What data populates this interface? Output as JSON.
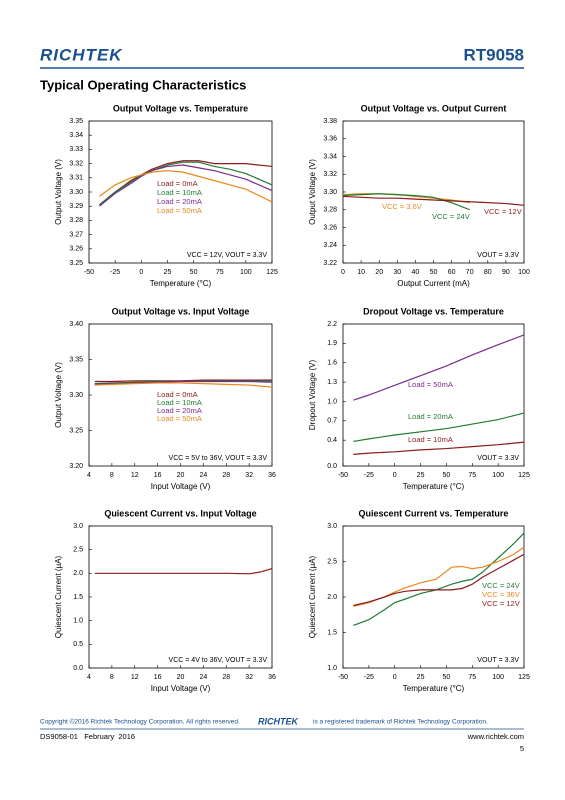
{
  "header": {
    "logo": "RICHTEK",
    "part": "RT9058",
    "section": "Typical Operating Characteristics"
  },
  "footer": {
    "copyright": "Copyright ©2016 Richtek Technology Corporation. All rights reserved.",
    "logo": "RICHTEK",
    "trademark": "is a registered trademark of Richtek Technology Corporation.",
    "doc": "DS9058-01   February  2016",
    "web": "www.richtek.com",
    "page": "5"
  },
  "chart_data": [
    {
      "type": "line",
      "title": "Output Voltage vs. Temperature",
      "xlabel": "Temperature (°C)",
      "ylabel": "Output Voltage (V)",
      "xlim": [
        -50,
        125
      ],
      "xticks": [
        -50,
        -25,
        0,
        25,
        50,
        75,
        100,
        125
      ],
      "ylim": [
        3.25,
        3.35
      ],
      "yticks": [
        3.25,
        3.26,
        3.27,
        3.28,
        3.29,
        {
          "value": 3.3,
          "label": "3.30"
        },
        3.31,
        3.32,
        3.33,
        3.34,
        3.35
      ],
      "x": [
        -40,
        -25,
        -10,
        0,
        10,
        25,
        40,
        55,
        70,
        85,
        100,
        125
      ],
      "series": [
        {
          "name": "Load = 0mA",
          "color": "#8b1a1a",
          "values": [
            3.291,
            3.3,
            3.308,
            3.312,
            3.316,
            3.32,
            3.322,
            3.322,
            3.32,
            3.32,
            3.32,
            3.318
          ]
        },
        {
          "name": "Load = 10mA",
          "color": "#1e7b30",
          "values": [
            3.291,
            3.3,
            3.307,
            3.312,
            3.315,
            3.319,
            3.321,
            3.321,
            3.318,
            3.316,
            3.313,
            3.305
          ]
        },
        {
          "name": "Load = 20mA",
          "color": "#7b2a8c",
          "values": [
            3.29,
            3.299,
            3.306,
            3.311,
            3.315,
            3.318,
            3.319,
            3.317,
            3.315,
            3.312,
            3.309,
            3.301
          ]
        },
        {
          "name": "Load = 50mA",
          "color": "#e8861a",
          "values": [
            3.297,
            3.305,
            3.31,
            3.312,
            3.314,
            3.315,
            3.314,
            3.311,
            3.308,
            3.305,
            3.302,
            3.293
          ]
        }
      ],
      "annotation": "VCC = 12V, VOUT = 3.3V"
    },
    {
      "type": "line",
      "title": "Output Voltage vs. Output Current",
      "xlabel": "Output Current (mA)",
      "ylabel": "Output Voltage (V)",
      "xlim": [
        0,
        100
      ],
      "xticks": [
        0,
        10,
        20,
        30,
        40,
        50,
        60,
        70,
        80,
        90,
        100
      ],
      "ylim": [
        3.22,
        3.38
      ],
      "yticks": [
        3.22,
        3.24,
        3.26,
        3.28,
        {
          "value": 3.3,
          "label": "3.30"
        },
        3.32,
        3.34,
        3.36,
        3.38
      ],
      "x": [
        0,
        10,
        20,
        30,
        40,
        50,
        60,
        70,
        80,
        90,
        100
      ],
      "series": [
        {
          "name": "VCC = 3.6V",
          "color": "#e8861a",
          "values": [
            3.297,
            3.298,
            3.298,
            3.297,
            3.295,
            3.293,
            3.291,
            3.288,
            null,
            null,
            null
          ]
        },
        {
          "name": "VCC = 24V",
          "color": "#1e7b30",
          "values": [
            3.296,
            3.297,
            3.298,
            3.297,
            3.296,
            3.294,
            3.288,
            3.28,
            null,
            null,
            null
          ]
        },
        {
          "name": "VCC = 12V",
          "color": "#8b1a1a",
          "values": [
            3.295,
            3.294,
            3.293,
            3.293,
            3.292,
            3.291,
            3.29,
            3.289,
            3.288,
            3.287,
            3.285
          ]
        }
      ],
      "annotation": "VOUT = 3.3V"
    },
    {
      "type": "line",
      "title": "Output Voltage vs. Input Voltage",
      "xlabel": "Input Voltage (V)",
      "ylabel": "Output Voltage (V)",
      "xlim": [
        4,
        36
      ],
      "xticks": [
        4,
        8,
        12,
        16,
        20,
        24,
        28,
        32,
        36
      ],
      "ylim": [
        3.2,
        3.4
      ],
      "yticks": [
        {
          "value": 3.2,
          "label": "3.20"
        },
        3.25,
        {
          "value": 3.3,
          "label": "3.30"
        },
        3.35,
        {
          "value": 3.4,
          "label": "3.40"
        }
      ],
      "x": [
        5,
        8,
        12,
        16,
        20,
        24,
        28,
        32,
        36
      ],
      "series": [
        {
          "name": "Load = 0mA",
          "color": "#8b1a1a",
          "values": [
            3.319,
            3.319,
            3.32,
            3.32,
            3.32,
            3.321,
            3.321,
            3.321,
            3.321
          ]
        },
        {
          "name": "Load = 10mA",
          "color": "#1e7b30",
          "values": [
            3.316,
            3.317,
            3.318,
            3.319,
            3.319,
            3.32,
            3.32,
            3.32,
            3.32
          ]
        },
        {
          "name": "Load = 20mA",
          "color": "#7b2a8c",
          "values": [
            3.315,
            3.316,
            3.317,
            3.318,
            3.319,
            3.319,
            3.319,
            3.319,
            3.318
          ]
        },
        {
          "name": "Load = 50mA",
          "color": "#e8861a",
          "values": [
            3.314,
            3.315,
            3.316,
            3.317,
            3.317,
            3.316,
            3.315,
            3.314,
            3.311
          ]
        }
      ],
      "annotation": "VCC = 5V to 36V, VOUT = 3.3V"
    },
    {
      "type": "line",
      "title": "Dropout Voltage vs. Temperature",
      "xlabel": "Temperature (°C)",
      "ylabel": "Dropout Voltage (V)",
      "xlim": [
        -50,
        125
      ],
      "xticks": [
        -50,
        -25,
        0,
        25,
        50,
        75,
        100,
        125
      ],
      "ylim": [
        0,
        2.2
      ],
      "yticks": [
        {
          "value": 0,
          "label": "0.0"
        },
        0.4,
        0.7,
        {
          "value": 1,
          "label": "1.0"
        },
        1.3,
        1.6,
        1.9,
        2.2
      ],
      "x": [
        -40,
        -25,
        0,
        25,
        50,
        75,
        100,
        125
      ],
      "series": [
        {
          "name": "Load = 50mA",
          "color": "#7b2a8c",
          "values": [
            1.02,
            1.1,
            1.25,
            1.4,
            1.55,
            1.72,
            1.88,
            2.03
          ]
        },
        {
          "name": "Load = 20mA",
          "color": "#1e7b30",
          "values": [
            0.38,
            0.42,
            0.48,
            0.53,
            0.58,
            0.65,
            0.72,
            0.82
          ]
        },
        {
          "name": "Load = 10mA",
          "color": "#8b1a1a",
          "values": [
            0.18,
            0.2,
            0.22,
            0.25,
            0.27,
            0.3,
            0.33,
            0.37
          ]
        }
      ],
      "annotation": "VOUT = 3.3V"
    },
    {
      "type": "line",
      "title": "Quiescent Current vs. Input Voltage",
      "xlabel": "Input Voltage (V)",
      "ylabel": "Quiescent Current (μA)",
      "xlim": [
        4,
        36
      ],
      "xticks": [
        4,
        8,
        12,
        16,
        20,
        24,
        28,
        32,
        36
      ],
      "ylim": [
        0,
        3
      ],
      "yticks": [
        {
          "value": 0,
          "label": "0.0"
        },
        0.5,
        {
          "value": 1,
          "label": "1.0"
        },
        1.5,
        {
          "value": 2,
          "label": "2.0"
        },
        2.5,
        {
          "value": 3,
          "label": "3.0"
        }
      ],
      "x": [
        5,
        8,
        12,
        16,
        20,
        24,
        28,
        32,
        34,
        36
      ],
      "series": [
        {
          "color": "#8b1a1a",
          "values": [
            2.0,
            2.0,
            2.0,
            2.0,
            2.0,
            2.0,
            2.0,
            1.99,
            2.03,
            2.1
          ]
        }
      ],
      "annotation": "VCC = 4V to 36V, VOUT = 3.3V"
    },
    {
      "type": "line",
      "title": "Quiescent Current vs. Temperature",
      "xlabel": "Temperature (°C)",
      "ylabel": "Quiescent Current (μA)",
      "xlim": [
        -50,
        125
      ],
      "xticks": [
        -50,
        -25,
        0,
        25,
        50,
        75,
        100,
        125
      ],
      "ylim": [
        1,
        3
      ],
      "yticks": [
        {
          "value": 1,
          "label": "1.0"
        },
        1.5,
        {
          "value": 2,
          "label": "2.0"
        },
        2.5,
        {
          "value": 3,
          "label": "3.0"
        }
      ],
      "x": [
        -40,
        -25,
        -10,
        0,
        10,
        25,
        40,
        55,
        65,
        75,
        85,
        100,
        115,
        125
      ],
      "series": [
        {
          "name": "VCC = 24V",
          "color": "#1e7b30",
          "values": [
            1.6,
            1.68,
            1.82,
            1.92,
            1.97,
            2.05,
            2.1,
            2.18,
            2.22,
            2.25,
            2.35,
            2.55,
            2.75,
            2.9
          ]
        },
        {
          "name": "VCC = 36V",
          "color": "#e8861a",
          "values": [
            1.87,
            1.92,
            2.0,
            2.07,
            2.13,
            2.2,
            2.25,
            2.42,
            2.43,
            2.4,
            2.42,
            2.5,
            2.6,
            2.7
          ]
        },
        {
          "name": "VCC = 12V",
          "color": "#8b1a1a",
          "values": [
            1.88,
            1.93,
            2.0,
            2.05,
            2.08,
            2.1,
            2.1,
            2.1,
            2.12,
            2.18,
            2.28,
            2.4,
            2.52,
            2.6
          ]
        }
      ],
      "annotation": "VOUT = 3.3V"
    }
  ]
}
